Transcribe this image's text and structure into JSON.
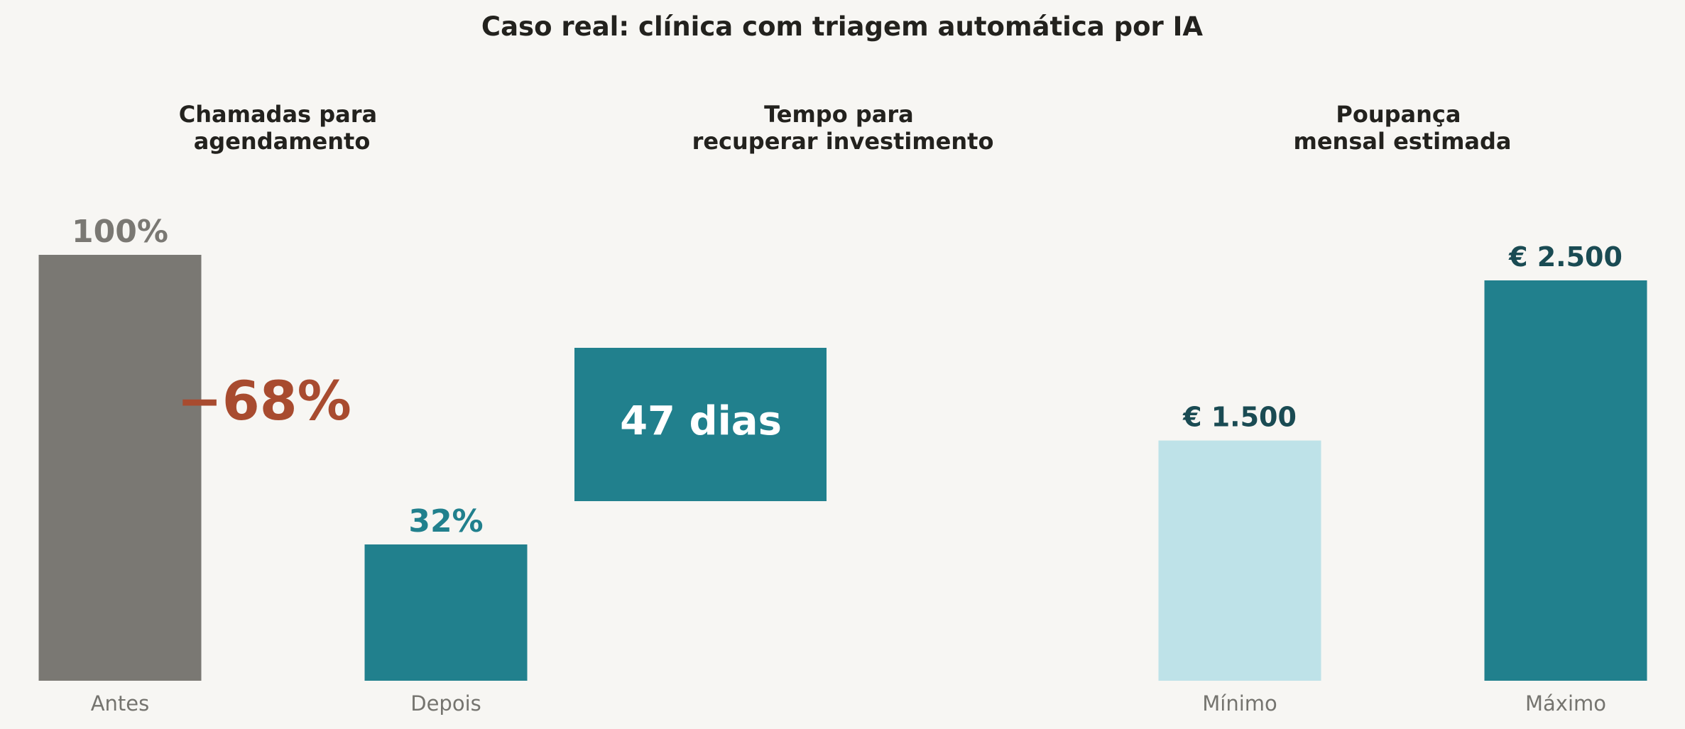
{
  "title": "Caso real: clínica com triagem automática por IA",
  "colors": {
    "background": "#f7f6f3",
    "gray_bar": "#7a7873",
    "teal": "#21808d",
    "light_teal": "#bee2e8",
    "dark_teal_text": "#1a4b53",
    "accent_rust": "#a84b2f",
    "category_text": "#75746f",
    "white": "#ffffff"
  },
  "chart_data": [
    {
      "type": "bar",
      "title": "Chamadas para agendamento",
      "title_lines": [
        "Chamadas para",
        "agendamento"
      ],
      "categories": [
        "Antes",
        "Depois"
      ],
      "values": [
        100,
        32
      ],
      "value_labels": [
        "100%",
        "32%"
      ],
      "unit": "%",
      "ylim": [
        0,
        100
      ],
      "annotation": "−68%",
      "grid": false
    },
    {
      "type": "table",
      "title": "Tempo para recuperar investimento",
      "title_lines": [
        "Tempo para",
        "recuperar investimento"
      ],
      "value": 47,
      "value_label": "47 dias"
    },
    {
      "type": "bar",
      "title": "Poupança mensal estimada",
      "title_lines": [
        "Poupança",
        "mensal estimada"
      ],
      "categories": [
        "Mínimo",
        "Máximo"
      ],
      "values": [
        1500,
        2500
      ],
      "value_labels": [
        "€ 1.500",
        "€ 2.500"
      ],
      "unit": "€",
      "grid": false
    }
  ]
}
